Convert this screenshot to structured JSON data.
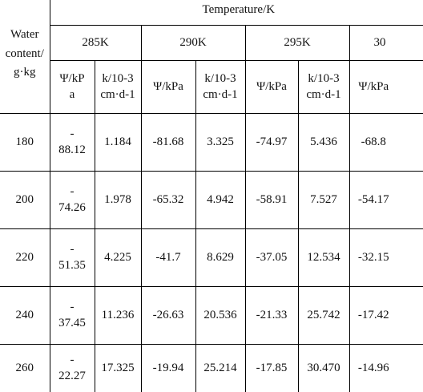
{
  "header": {
    "water_content_label": "Water\ncontent/\ng·kg",
    "temperature_label": "Temperature/K",
    "temps": [
      "285K",
      "290K",
      "295K",
      "30"
    ],
    "sub_headers": [
      {
        "psi": "Ψ/kP\na",
        "k": "k/10-3\ncm·d-1"
      },
      {
        "psi": "Ψ/kPa",
        "k": "k/10-3\ncm·d-1"
      },
      {
        "psi": "Ψ/kPa",
        "k": "k/10-3\ncm·d-1"
      },
      {
        "psi": "Ψ/kPa",
        "k": ""
      }
    ]
  },
  "rows": [
    {
      "wc": "180",
      "c": [
        "-\n88.12",
        "1.184",
        "-81.68",
        "3.325",
        "-74.97",
        "5.436",
        "-68.8"
      ]
    },
    {
      "wc": "200",
      "c": [
        "-\n74.26",
        "1.978",
        "-65.32",
        "4.942",
        "-58.91",
        "7.527",
        "-54.17"
      ]
    },
    {
      "wc": "220",
      "c": [
        "-\n51.35",
        "4.225",
        "-41.7",
        "8.629",
        "-37.05",
        "12.534",
        "-32.15"
      ]
    },
    {
      "wc": "240",
      "c": [
        "-\n37.45",
        "11.236",
        "-26.63",
        "20.536",
        "-21.33",
        "25.742",
        "-17.42"
      ]
    },
    {
      "wc": "260",
      "c": [
        "-\n22.27",
        "17.325",
        "-19.94",
        "25.214",
        "-17.85",
        "30.470",
        "-14.96"
      ]
    }
  ]
}
